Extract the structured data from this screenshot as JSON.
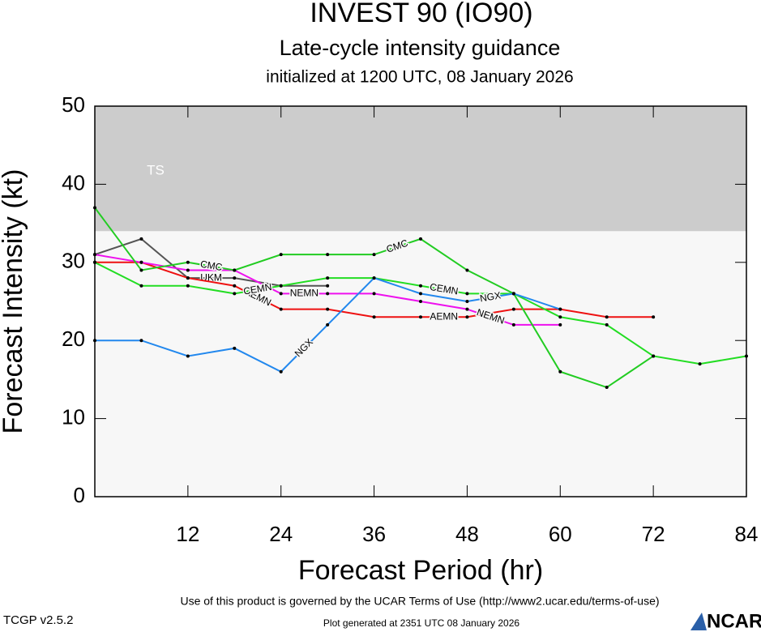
{
  "chart_data": {
    "type": "line",
    "title": "INVEST 90 (IO90)",
    "subtitle": "Late-cycle intensity guidance",
    "subtitle2": "initialized at 1200 UTC, 08 January 2026",
    "x_label": "Forecast Period (hr)",
    "y_label": "Forecast Intensity (kt)",
    "x": [
      0,
      6,
      12,
      18,
      24,
      30,
      36,
      42,
      48,
      54,
      60,
      66,
      72,
      78,
      84
    ],
    "xlim": [
      0,
      84
    ],
    "xticks": [
      12,
      24,
      36,
      48,
      60,
      72,
      84
    ],
    "ylim": [
      0,
      50
    ],
    "yticks": [
      0,
      10,
      20,
      30,
      40,
      50
    ],
    "bands": [
      {
        "label": "TS",
        "from": 34,
        "to": 50,
        "color": "#cccccc"
      }
    ],
    "series": [
      {
        "name": "UKM",
        "color": "#555555",
        "values": [
          31,
          33,
          28,
          28,
          27,
          27,
          null,
          null,
          null,
          null,
          null,
          null,
          null,
          null,
          null
        ]
      },
      {
        "name": "AEMN",
        "color": "#ee1111",
        "values": [
          30,
          30,
          28,
          27,
          24,
          24,
          23,
          23,
          23,
          24,
          24,
          23,
          23,
          null,
          null
        ]
      },
      {
        "name": "NEMN",
        "color": "#ee11ee",
        "values": [
          31,
          30,
          29,
          29,
          26,
          26,
          26,
          25,
          24,
          22,
          22,
          null,
          null,
          null,
          null
        ]
      },
      {
        "name": "CMC",
        "color": "#22cc22",
        "values": [
          37,
          29,
          30,
          29,
          31,
          31,
          31,
          33,
          29,
          26,
          16,
          14,
          18,
          null,
          null
        ]
      },
      {
        "name": "CEMN",
        "color": "#22dd22",
        "values": [
          30,
          27,
          27,
          26,
          27,
          28,
          28,
          27,
          26,
          26,
          23,
          22,
          18,
          17,
          18
        ]
      },
      {
        "name": "NGX",
        "color": "#2288ee",
        "values": [
          20,
          20,
          18,
          19,
          16,
          22,
          28,
          26,
          25,
          26,
          24,
          null,
          null,
          null,
          null
        ]
      }
    ],
    "footer": {
      "terms": "Use of this product is governed by the UCAR Terms of Use (http://www2.ucar.edu/terms-of-use)",
      "version": "TCGP v2.5.2",
      "generated": "Plot generated at 2351 UTC   08 January 2026",
      "logo": "NCAR"
    }
  }
}
